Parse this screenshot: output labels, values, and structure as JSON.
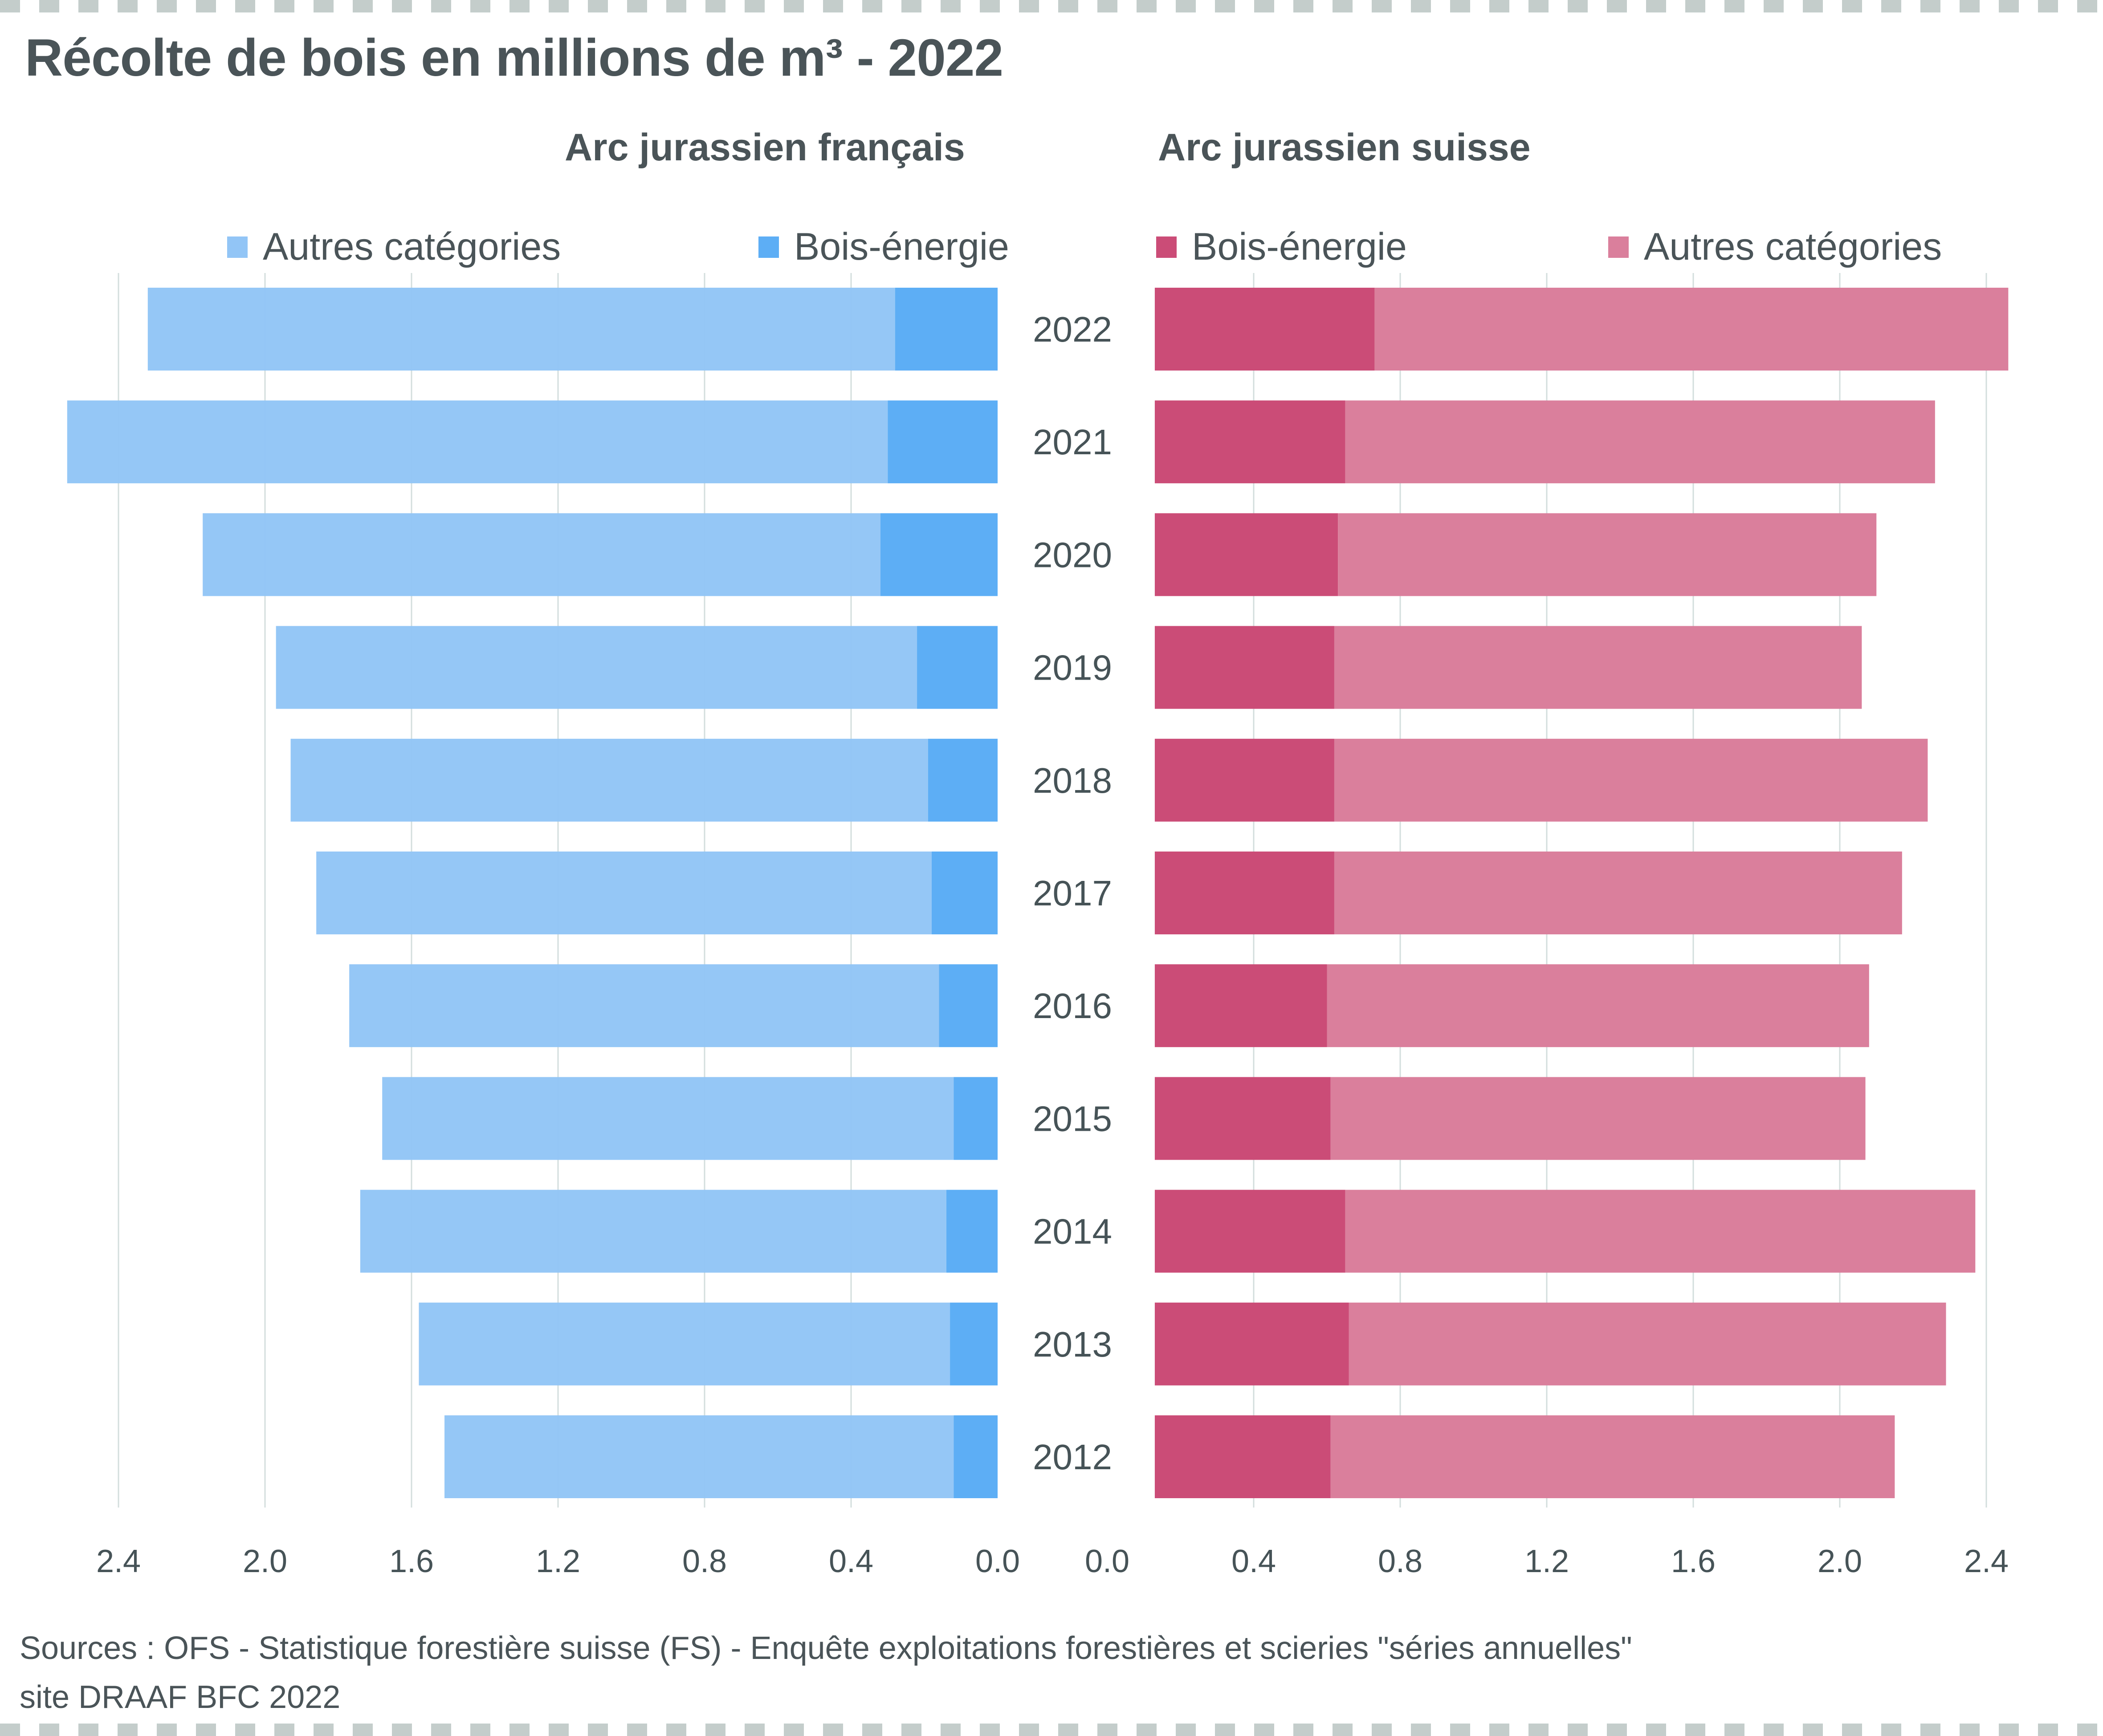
{
  "title": "Récolte de bois en millions de m³ - 2022",
  "panels": {
    "left_title": "Arc jurassien français",
    "right_title": "Arc jurassien suisse"
  },
  "legend": {
    "left": [
      {
        "label": "Autres catégories",
        "color": "#92c5f6"
      },
      {
        "label": "Bois-énergie",
        "color": "#5daef5"
      }
    ],
    "right": [
      {
        "label": "Bois-énergie",
        "color": "#cb4c77"
      },
      {
        "label": "Autres catégories",
        "color": "#da7f9c"
      }
    ]
  },
  "footer": {
    "line1": "Sources : OFS - Statistique forestière suisse (FS)  - Enquête exploitations forestières et scieries \"séries annuelles\"",
    "line2": "site DRAAF BFC 2022"
  },
  "chart_data": [
    {
      "type": "bar",
      "orientation": "horizontal",
      "stacked": true,
      "direction": "leftward",
      "title": "Arc jurassien français",
      "categories": [
        "2022",
        "2021",
        "2020",
        "2019",
        "2018",
        "2017",
        "2016",
        "2015",
        "2014",
        "2013",
        "2012"
      ],
      "series": [
        {
          "name": "Bois-énergie",
          "color": "#5daef5",
          "values": [
            0.28,
            0.3,
            0.32,
            0.22,
            0.19,
            0.18,
            0.16,
            0.12,
            0.14,
            0.13,
            0.12
          ]
        },
        {
          "name": "Autres catégories",
          "color": "#92c5f6",
          "values": [
            2.04,
            2.24,
            1.85,
            1.75,
            1.74,
            1.68,
            1.61,
            1.56,
            1.6,
            1.45,
            1.39
          ]
        }
      ],
      "totals": [
        2.32,
        2.54,
        2.17,
        1.97,
        1.93,
        1.86,
        1.77,
        1.68,
        1.74,
        1.58,
        1.51
      ],
      "xlim": [
        2.4,
        0.0
      ],
      "ticks": [
        "2.4",
        "2.0",
        "1.6",
        "1.2",
        "0.8",
        "0.4",
        "0.0"
      ],
      "tick_values": [
        2.4,
        2.0,
        1.6,
        1.2,
        0.8,
        0.4,
        0.0
      ],
      "grid": true,
      "xlabel": "",
      "ylabel": ""
    },
    {
      "type": "bar",
      "orientation": "horizontal",
      "stacked": true,
      "direction": "rightward",
      "title": "Arc jurassien suisse",
      "categories": [
        "2022",
        "2021",
        "2020",
        "2019",
        "2018",
        "2017",
        "2016",
        "2015",
        "2014",
        "2013",
        "2012"
      ],
      "series": [
        {
          "name": "Bois-énergie",
          "color": "#cb4c77",
          "values": [
            0.73,
            0.65,
            0.63,
            0.62,
            0.62,
            0.62,
            0.6,
            0.61,
            0.65,
            0.66,
            0.61
          ]
        },
        {
          "name": "Autres catégories",
          "color": "#da7f9c",
          "values": [
            1.73,
            1.61,
            1.47,
            1.44,
            1.62,
            1.55,
            1.48,
            1.46,
            1.72,
            1.63,
            1.54
          ]
        }
      ],
      "totals": [
        2.46,
        2.26,
        2.1,
        2.06,
        2.24,
        2.17,
        2.08,
        2.07,
        2.37,
        2.29,
        2.15
      ],
      "bar_base_value": 0.13,
      "xlim": [
        0.0,
        2.4
      ],
      "ticks": [
        "0.0",
        "0.4",
        "0.8",
        "1.2",
        "1.6",
        "2.0",
        "2.4"
      ],
      "tick_values": [
        0.0,
        0.4,
        0.8,
        1.2,
        1.6,
        2.0,
        2.4
      ],
      "grid": true,
      "xlabel": "",
      "ylabel": ""
    }
  ]
}
